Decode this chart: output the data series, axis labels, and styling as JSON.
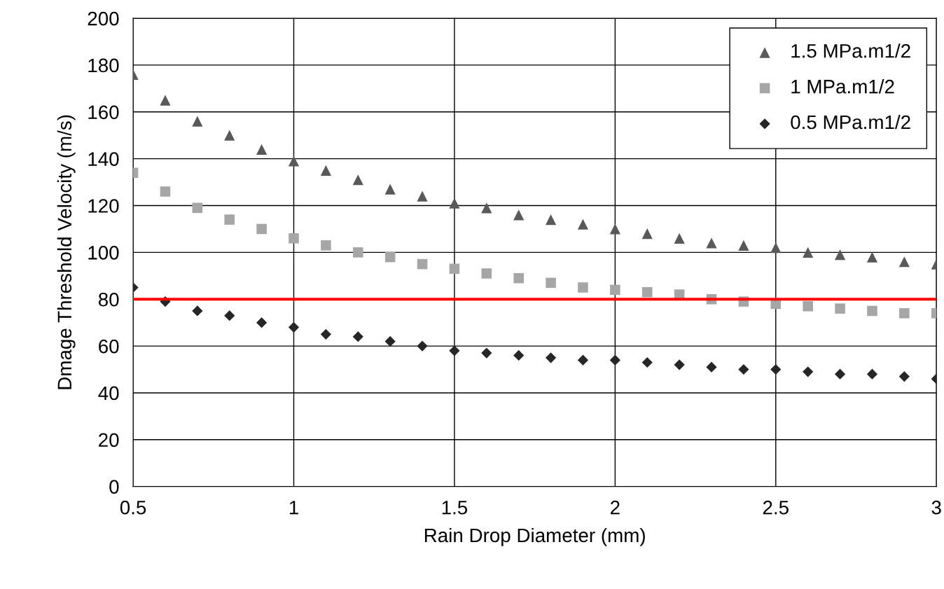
{
  "chart_data": {
    "type": "scatter",
    "xlabel": "Rain Drop Diameter (mm)",
    "ylabel": "Dmage Threshold Velocity (m/s)",
    "x": [
      0.5,
      0.6,
      0.7,
      0.8,
      0.9,
      1.0,
      1.1,
      1.2,
      1.3,
      1.4,
      1.5,
      1.6,
      1.7,
      1.8,
      1.9,
      2.0,
      2.1,
      2.2,
      2.3,
      2.4,
      2.5,
      2.6,
      2.7,
      2.8,
      2.9,
      3.0
    ],
    "series": [
      {
        "name": "1.5 MPa.m1/2",
        "color": "#595959",
        "marker": "triangle",
        "values": [
          176,
          165,
          156,
          150,
          144,
          139,
          135,
          131,
          127,
          124,
          121,
          119,
          116,
          114,
          112,
          110,
          108,
          106,
          104,
          103,
          102,
          100,
          99,
          98,
          96,
          95
        ]
      },
      {
        "name": "1 MPa.m1/2",
        "color": "#a6a6a6",
        "marker": "square",
        "values": [
          134,
          126,
          119,
          114,
          110,
          106,
          103,
          100,
          98,
          95,
          93,
          91,
          89,
          87,
          85,
          84,
          83,
          82,
          80,
          79,
          78,
          77,
          76,
          75,
          74,
          74
        ]
      },
      {
        "name": "0.5 MPa.m1/2",
        "color": "#262626",
        "marker": "diamond",
        "values": [
          85,
          79,
          75,
          73,
          70,
          68,
          65,
          64,
          62,
          60,
          58,
          57,
          56,
          55,
          54,
          54,
          53,
          52,
          51,
          50,
          50,
          49,
          48,
          48,
          47,
          46
        ]
      }
    ],
    "ref_lines": [
      {
        "axis": "y",
        "value": 80,
        "color": "#ff0000",
        "line_style": "solid"
      }
    ],
    "xlim": [
      0.5,
      3
    ],
    "xticks": [
      0.5,
      1,
      1.5,
      2,
      2.5,
      3
    ],
    "ylim": [
      0,
      200
    ],
    "yticks": [
      0,
      20,
      40,
      60,
      80,
      100,
      120,
      140,
      160,
      180,
      200
    ],
    "grid": true,
    "legend": "top right"
  }
}
